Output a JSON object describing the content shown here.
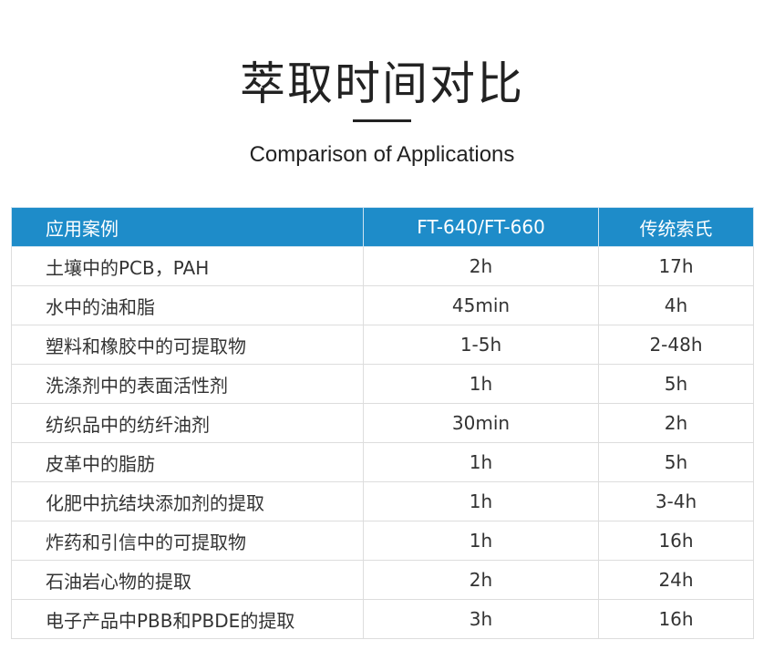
{
  "title": "萃取时间对比",
  "subtitle": "Comparison of Applications",
  "table": {
    "headers": [
      "应用案例",
      "FT-640/FT-660",
      "传统索氏"
    ],
    "rows": [
      [
        "土壤中的PCB，PAH",
        "2h",
        "17h"
      ],
      [
        "水中的油和脂",
        "45min",
        "4h"
      ],
      [
        "塑料和橡胶中的可提取物",
        "1-5h",
        "2-48h"
      ],
      [
        "洗涤剂中的表面活性剂",
        "1h",
        "5h"
      ],
      [
        "纺织品中的纺纤油剂",
        "30min",
        "2h"
      ],
      [
        "皮革中的脂肪",
        "1h",
        "5h"
      ],
      [
        "化肥中抗结块添加剂的提取",
        "1h",
        "3-4h"
      ],
      [
        "炸药和引信中的可提取物",
        "1h",
        "16h"
      ],
      [
        "石油岩心物的提取",
        "2h",
        "24h"
      ],
      [
        "电子产品中PBB和PBDE的提取",
        "3h",
        "16h"
      ]
    ]
  },
  "colors": {
    "header_bg": "#1e8cc9"
  }
}
